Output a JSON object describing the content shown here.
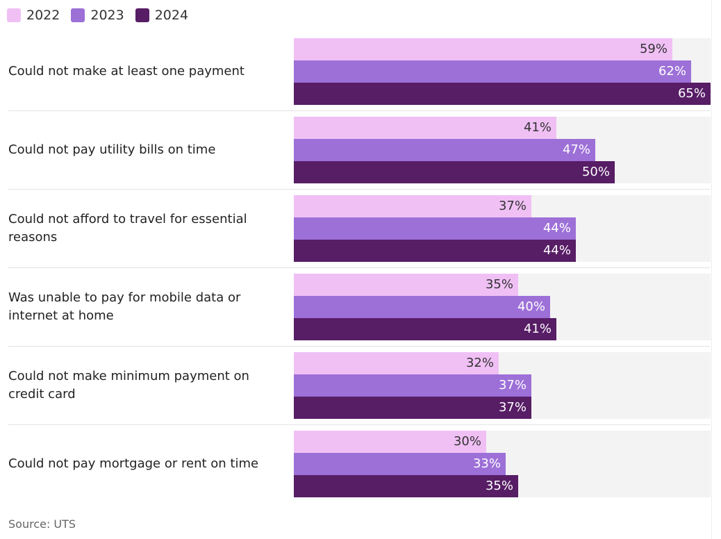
{
  "chart_data": {
    "type": "bar",
    "orientation": "horizontal",
    "title": "",
    "xlabel": "",
    "ylabel": "",
    "xlim": [
      0,
      65
    ],
    "value_suffix": "%",
    "categories": [
      "Could not make at least one payment",
      "Could not pay utility bills on time",
      "Could not afford to travel for essential reasons",
      "Was unable to pay for mobile data or internet at home",
      "Could not make minimum payment on credit card",
      "Could not pay mortgage or rent on time"
    ],
    "series": [
      {
        "name": "2022",
        "color": "#f0c0f5",
        "label_color": "#333333",
        "values": [
          59,
          41,
          37,
          35,
          32,
          30
        ]
      },
      {
        "name": "2023",
        "color": "#9d70d8",
        "label_color": "#ffffff",
        "values": [
          62,
          47,
          44,
          40,
          37,
          33
        ]
      },
      {
        "name": "2024",
        "color": "#571d65",
        "label_color": "#ffffff",
        "values": [
          65,
          50,
          44,
          41,
          37,
          35
        ]
      }
    ],
    "legend": "top-left",
    "grid": false
  },
  "source": "Source: UTS"
}
